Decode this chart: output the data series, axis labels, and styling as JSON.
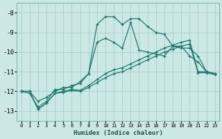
{
  "xlabel": "Humidex (Indice chaleur)",
  "bg_color": "#cce8e5",
  "grid_color": "#aaccca",
  "line_color": "#1a7a6e",
  "xlim": [
    -0.5,
    23.5
  ],
  "ylim": [
    -13.5,
    -7.5
  ],
  "yticks": [
    -13,
    -12,
    -11,
    -10,
    -9,
    -8
  ],
  "xticks": [
    0,
    1,
    2,
    3,
    4,
    5,
    6,
    7,
    8,
    9,
    10,
    11,
    12,
    13,
    14,
    15,
    16,
    17,
    18,
    19,
    20,
    21,
    22,
    23
  ],
  "series1_x": [
    0,
    1,
    2,
    3,
    4,
    5,
    6,
    7,
    8,
    9,
    10,
    11,
    12,
    13,
    14,
    15,
    16,
    17,
    18,
    19,
    20,
    21,
    22,
    23
  ],
  "series1_y": [
    -12.0,
    -12.0,
    -12.5,
    -12.3,
    -12.0,
    -11.8,
    -11.8,
    -11.5,
    -11.1,
    -8.6,
    -8.2,
    -8.2,
    -8.6,
    -8.3,
    -8.3,
    -8.7,
    -9.0,
    -9.1,
    -9.7,
    -9.7,
    -10.2,
    -10.5,
    -11.0,
    -11.1
  ],
  "series2_x": [
    0,
    1,
    2,
    3,
    4,
    5,
    6,
    7,
    8,
    9,
    10,
    11,
    12,
    13,
    14,
    15,
    16,
    17,
    18,
    19,
    20,
    21,
    22,
    23
  ],
  "series2_y": [
    -12.0,
    -12.1,
    -12.8,
    -12.5,
    -11.9,
    -11.9,
    -11.7,
    -11.6,
    -11.1,
    -9.5,
    -9.3,
    -9.5,
    -9.8,
    -8.5,
    -9.9,
    -10.0,
    -10.1,
    -10.2,
    -9.7,
    -9.8,
    -9.8,
    -10.2,
    -11.0,
    -11.1
  ],
  "series3_x": [
    0,
    1,
    2,
    3,
    4,
    5,
    6,
    7,
    8,
    9,
    10,
    11,
    12,
    13,
    14,
    15,
    16,
    17,
    18,
    19,
    20,
    21,
    22,
    23
  ],
  "series3_y": [
    -12.0,
    -12.0,
    -12.9,
    -12.6,
    -12.1,
    -12.0,
    -11.9,
    -11.95,
    -11.7,
    -11.4,
    -11.1,
    -10.9,
    -10.8,
    -10.6,
    -10.4,
    -10.2,
    -10.0,
    -9.8,
    -9.65,
    -9.5,
    -9.4,
    -11.0,
    -11.0,
    -11.1
  ],
  "series4_x": [
    0,
    1,
    2,
    3,
    4,
    5,
    6,
    7,
    8,
    9,
    10,
    11,
    12,
    13,
    14,
    15,
    16,
    17,
    18,
    19,
    20,
    21,
    22,
    23
  ],
  "series4_y": [
    -12.0,
    -12.0,
    -12.9,
    -12.6,
    -12.1,
    -12.05,
    -11.95,
    -12.0,
    -11.8,
    -11.55,
    -11.3,
    -11.1,
    -11.0,
    -10.8,
    -10.6,
    -10.4,
    -10.2,
    -10.0,
    -9.85,
    -9.7,
    -9.6,
    -11.05,
    -11.05,
    -11.15
  ]
}
